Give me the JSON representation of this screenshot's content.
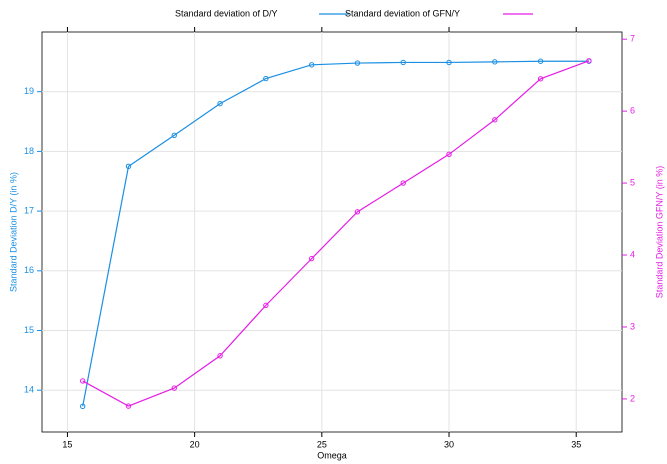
{
  "chart_data": {
    "type": "line",
    "x_label": "Omega",
    "y_label": "Standard Deviation D/Y (in %)",
    "y2_label": "Standard Deviation GFN/Y (in %)",
    "x": [
      15.6,
      17.4,
      19.2,
      21.0,
      22.8,
      24.6,
      26.4,
      28.2,
      30.0,
      31.8,
      33.6,
      35.5
    ],
    "series": [
      {
        "name": "Standard deviation of D/Y",
        "color": "#1a8fe3",
        "axis": "y",
        "values": [
          13.73,
          17.75,
          18.27,
          18.8,
          19.22,
          19.45,
          19.48,
          19.49,
          19.49,
          19.5,
          19.51,
          19.51
        ]
      },
      {
        "name": "Standard deviation of GFN/Y",
        "color": "#e61ee6",
        "axis": "y2",
        "values": [
          2.25,
          1.9,
          2.15,
          2.6,
          3.3,
          3.95,
          4.6,
          5.0,
          5.4,
          5.88,
          6.45,
          6.7
        ]
      }
    ],
    "xlim": [
      14.0,
      36.8
    ],
    "xticks": [
      15,
      20,
      25,
      30,
      35
    ],
    "ylim": [
      13.3,
      20.0
    ],
    "yticks": [
      14,
      15,
      16,
      17,
      18,
      19
    ],
    "y2lim": [
      1.54,
      7.1
    ],
    "y2ticks": [
      2,
      3,
      4,
      5,
      6,
      7
    ],
    "grid": true,
    "legend": "top"
  }
}
